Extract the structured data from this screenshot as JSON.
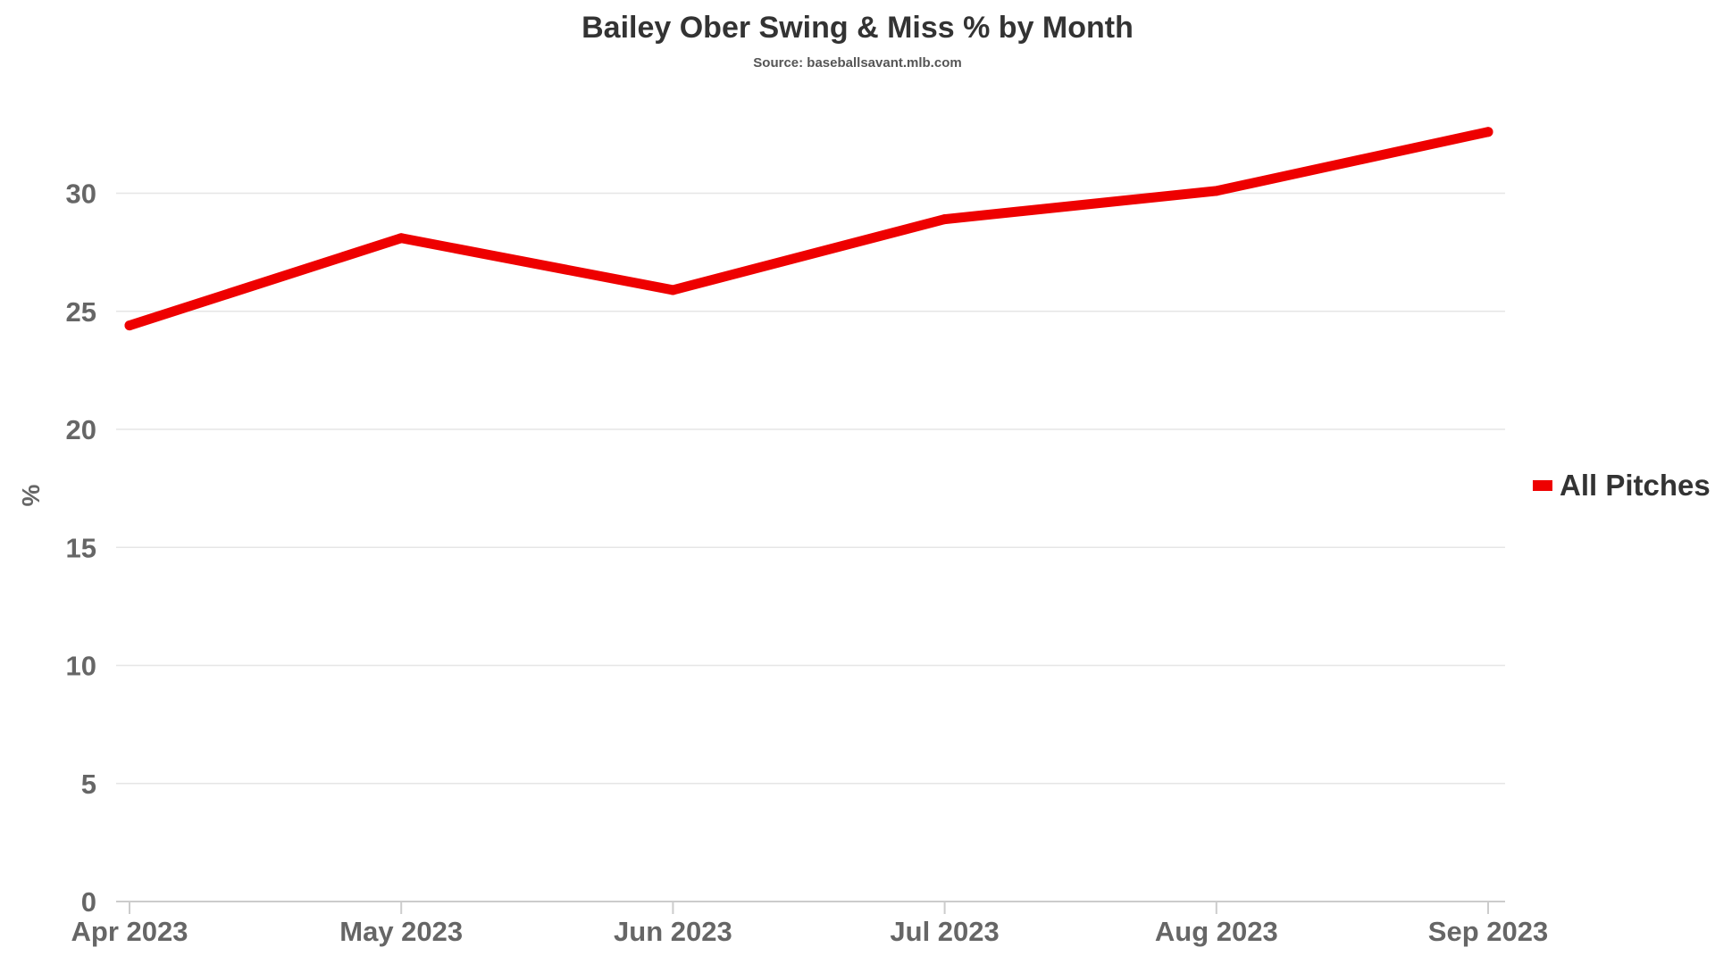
{
  "chart_data": {
    "type": "line",
    "title": "Bailey Ober Swing & Miss % by Month",
    "subtitle": "Source: baseballsavant.mlb.com",
    "xlabel": "",
    "ylabel": "%",
    "categories": [
      "Apr 2023",
      "May 2023",
      "Jun 2023",
      "Jul 2023",
      "Aug 2023",
      "Sep 2023"
    ],
    "series": [
      {
        "name": "All Pitches",
        "values": [
          24.4,
          28.1,
          25.9,
          28.9,
          30.1,
          32.6
        ]
      }
    ],
    "ylim": [
      0,
      33
    ],
    "yticks": [
      0,
      5,
      10,
      15,
      20,
      25,
      30
    ],
    "grid": true,
    "legend_position": "right",
    "colors": {
      "series": "#ee0000",
      "grid": "#e6e6e6",
      "axis": "#cccccc"
    }
  }
}
